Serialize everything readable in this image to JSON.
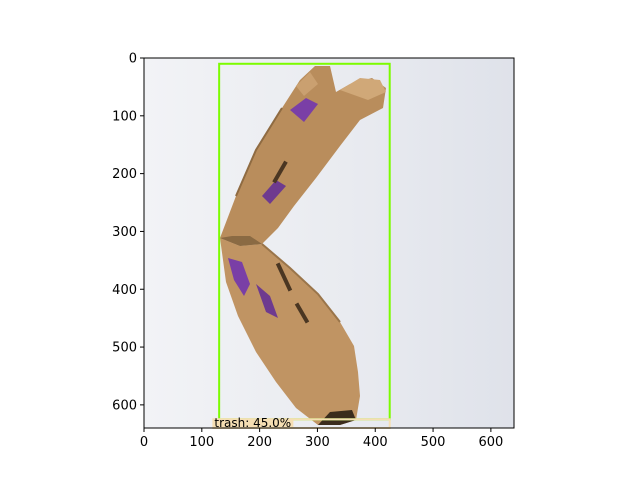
{
  "figure": {
    "image": {
      "subject": "flattened bent cardboard box",
      "background_color": "#e6e8ee",
      "cardboard_color": "#b98d5c",
      "print_color": "#7a3fa6"
    },
    "x_axis": {
      "range": [
        0,
        640
      ],
      "ticks": [
        "0",
        "100",
        "200",
        "300",
        "400",
        "500",
        "600"
      ]
    },
    "y_axis": {
      "range": [
        0,
        640
      ],
      "inverted": true,
      "ticks": [
        "0",
        "100",
        "200",
        "300",
        "400",
        "500",
        "600"
      ]
    },
    "detection": {
      "label": "trash: 45.0%",
      "class": "trash",
      "confidence_percent": 45.0,
      "box": {
        "x_min": 130,
        "y_min": 10,
        "x_max": 425,
        "y_max": 625
      },
      "box_color": "#7cfc00",
      "secondary_box": {
        "x_min": 120,
        "y_min": 625,
        "x_max": 425,
        "y_max": 640
      },
      "label_background": "#f5deb3"
    }
  }
}
